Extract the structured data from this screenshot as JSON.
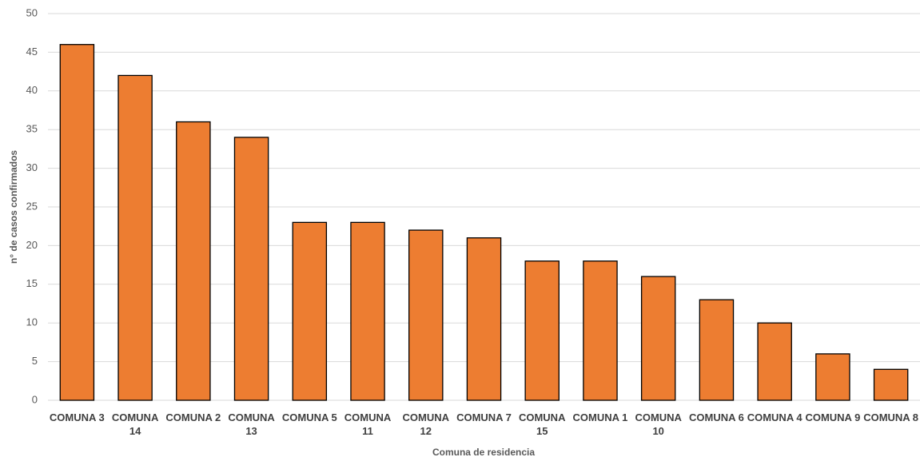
{
  "chart_data": {
    "type": "bar",
    "categories": [
      "COMUNA 3",
      "COMUNA 14",
      "COMUNA 2",
      "COMUNA 13",
      "COMUNA 5",
      "COMUNA 11",
      "COMUNA 12",
      "COMUNA 7",
      "COMUNA 15",
      "COMUNA 1",
      "COMUNA 10",
      "COMUNA 6",
      "COMUNA 4",
      "COMUNA 9",
      "COMUNA 8"
    ],
    "values": [
      46,
      42,
      36,
      34,
      23,
      23,
      22,
      21,
      18,
      18,
      16,
      13,
      10,
      6,
      4
    ],
    "color": "#ed7d31",
    "ylim": [
      0,
      50
    ],
    "yticks": [
      0,
      5,
      10,
      15,
      20,
      25,
      30,
      35,
      40,
      45,
      50
    ],
    "grid": true,
    "x_label": "Comuna de residencia",
    "y_label": "n° de casos confirmados"
  }
}
